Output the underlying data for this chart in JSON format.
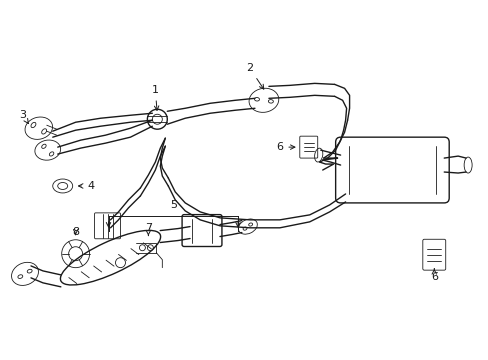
{
  "bg_color": "#ffffff",
  "line_color": "#1a1a1a",
  "lw": 1.0,
  "tlw": 0.6,
  "fig_width": 4.89,
  "fig_height": 3.6,
  "dpi": 100
}
